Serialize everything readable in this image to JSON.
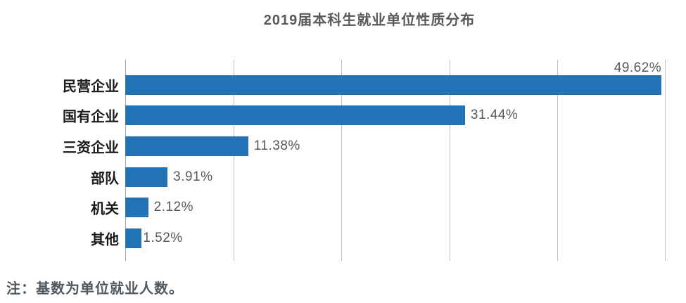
{
  "title": "2019届本科生就业单位性质分布",
  "note": "注：基数为单位就业人数。",
  "colors": {
    "bar": "#2272B5",
    "title_text": "#595959",
    "category_text": "#1A1A1A",
    "value_text": "#595959",
    "gridline": "#BFBFBF",
    "axis_line": "#A6A6A6",
    "note_text": "#4F5962"
  },
  "chart_data": {
    "type": "bar",
    "orientation": "horizontal",
    "title": "2019届本科生就业单位性质分布",
    "categories": [
      "民营企业",
      "国有企业",
      "三资企业",
      "部队",
      "机关",
      "其他"
    ],
    "values": [
      49.62,
      31.44,
      11.38,
      3.91,
      2.12,
      1.52
    ],
    "value_labels": [
      "49.62%",
      "31.44%",
      "11.38%",
      "3.91%",
      "2.12%",
      "1.52%"
    ],
    "xlabel": "",
    "ylabel": "",
    "xlim": [
      0,
      50
    ],
    "gridline_interval": 10,
    "grid": true,
    "legend": false,
    "note": "注：基数为单位就业人数。"
  }
}
